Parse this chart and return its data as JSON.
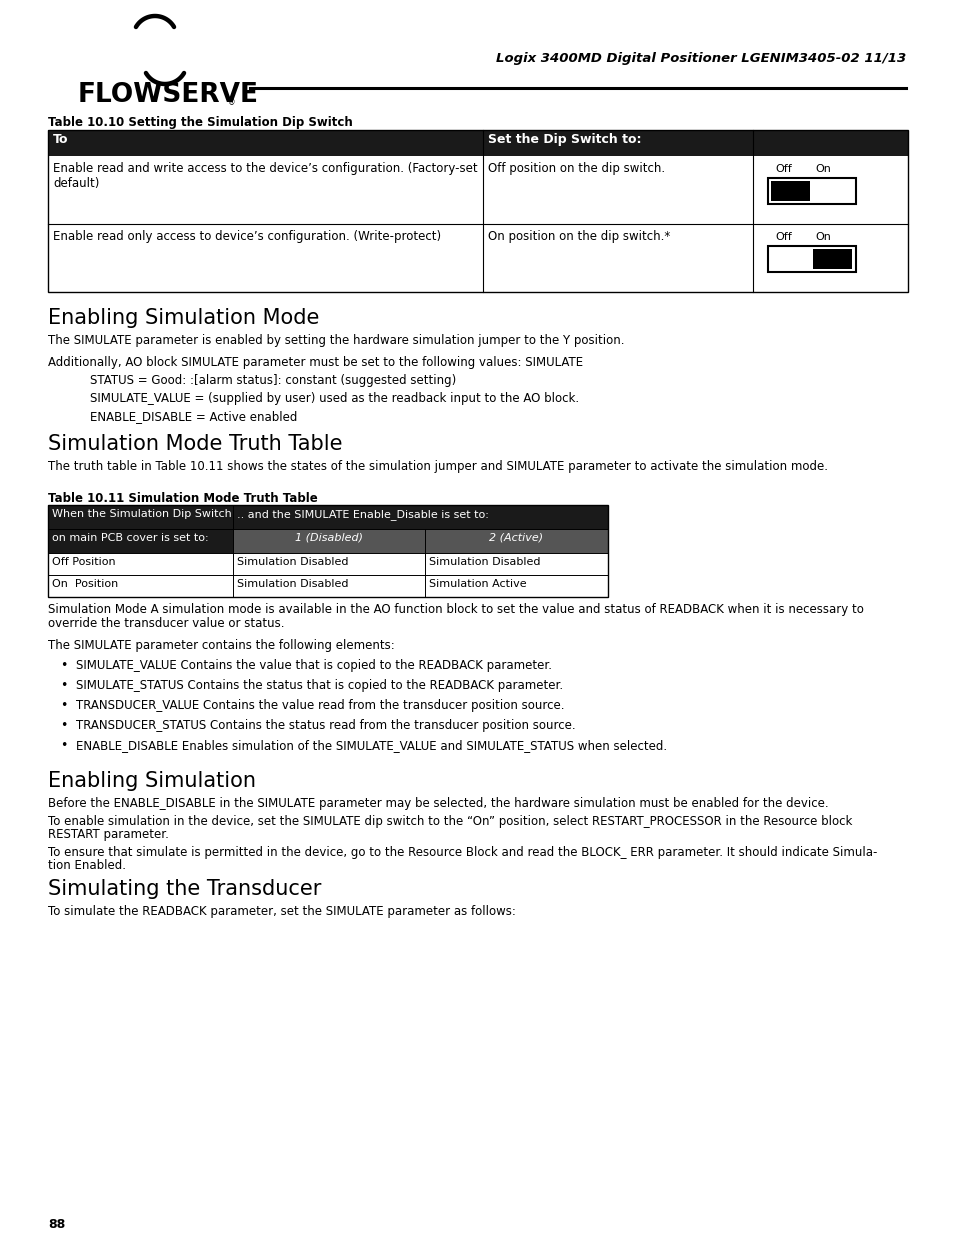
{
  "page_bg": "#ffffff",
  "header_right": "Logix 3400MD Digital Positioner LGENIM3405-02 11/13",
  "logo_text": "FLOWSERVE",
  "table1_title": "Table 10.10 Setting the Simulation Dip Switch",
  "table1_col1_header": "To",
  "table1_col2_header": "Set the Dip Switch to:",
  "table1_header_bg": "#1a1a1a",
  "table1_header_fg": "#ffffff",
  "table1_row1_col1": "Enable read and write access to the device’s configuration. (Factory-set\ndefault)",
  "table1_row1_col2": "Off position on the dip switch.",
  "table1_row2_col1": "Enable read only access to device’s configuration. (Write-protect)",
  "table1_row2_col2": "On position on the dip switch.*",
  "section1_title": "Enabling Simulation Mode",
  "section1_p1": "The SIMULATE parameter is enabled by setting the hardware simulation jumper to the Y position.",
  "section1_p2": "Additionally, AO block SIMULATE parameter must be set to the following values: SIMULATE",
  "section1_indent1": "STATUS = Good: :[alarm status]: constant (suggested setting)",
  "section1_indent2": "SIMULATE_VALUE = (supplied by user) used as the readback input to the AO block.",
  "section1_indent3": "ENABLE_DISABLE = Active enabled",
  "section2_title": "Simulation Mode Truth Table",
  "section2_p1": "The truth table in Table 10.11 shows the states of the simulation jumper and SIMULATE parameter to activate the simulation mode.",
  "table2_title": "Table 10.11 Simulation Mode Truth Table",
  "table2_col1_h1": "When the Simulation Dip Switch",
  "table2_col1_h2": "on main PCB cover is set to:",
  "table2_col2_h1": ".. and the SIMULATE Enable_Disable is set to:",
  "table2_col2a_h2": "1 (Disabled)",
  "table2_col2b_h2": "2 (Active)",
  "table2_r1c1": "Off Position",
  "table2_r1c2a": "Simulation Disabled",
  "table2_r1c2b": "Simulation Disabled",
  "table2_r2c1": "On  Position",
  "table2_r2c2a": "Simulation Disabled",
  "table2_r2c2b": "Simulation Active",
  "section2_para1_line1": "Simulation Mode A simulation mode is available in the AO function block to set the value and status of READBACK when it is necessary to",
  "section2_para1_line2": "override the transducer value or status.",
  "section2_para2": "The SIMULATE parameter contains the following elements:",
  "bullet1": "SIMULATE_VALUE Contains the value that is copied to the READBACK parameter.",
  "bullet2": "SIMULATE_STATUS Contains the status that is copied to the READBACK parameter.",
  "bullet3": "TRANSDUCER_VALUE Contains the value read from the transducer position source.",
  "bullet4": "TRANSDUCER_STATUS Contains the status read from the transducer position source.",
  "bullet5": "ENABLE_DISABLE Enables simulation of the SIMULATE_VALUE and SIMULATE_STATUS when selected.",
  "section3_title": "Enabling Simulation",
  "section3_p1": "Before the ENABLE_DISABLE in the SIMULATE parameter may be selected, the hardware simulation must be enabled for the device.",
  "section3_p2_line1": "To enable simulation in the device, set the SIMULATE dip switch to the “On” position, select RESTART_PROCESSOR in the Resource block",
  "section3_p2_line2": "RESTART parameter.",
  "section3_p3_line1": "To ensure that simulate is permitted in the device, go to the Resource Block and read the BLOCK_ ERR parameter. It should indicate Simula-",
  "section3_p3_line2": "tion Enabled.",
  "section4_title": "Simulating the Transducer",
  "section4_p1": "To simulate the READBACK parameter, set the SIMULATE parameter as follows:",
  "page_number": "88"
}
